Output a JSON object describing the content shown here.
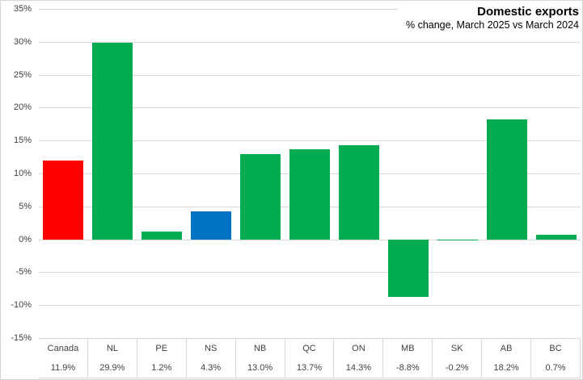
{
  "chart_data": {
    "type": "bar",
    "title": "Domestic exports",
    "subtitle": "% change, March 2025 vs March 2024",
    "categories": [
      "Canada",
      "NL",
      "PE",
      "NS",
      "NB",
      "QC",
      "ON",
      "MB",
      "SK",
      "AB",
      "BC"
    ],
    "values": [
      11.9,
      29.9,
      1.2,
      4.3,
      13.0,
      13.7,
      14.3,
      -8.8,
      -0.2,
      18.2,
      0.7
    ],
    "value_labels": [
      "11.9%",
      "29.9%",
      "1.2%",
      "4.3%",
      "13.0%",
      "13.7%",
      "14.3%",
      "-8.8%",
      "-0.2%",
      "18.2%",
      "0.7%"
    ],
    "bar_colors": [
      "#FF0000",
      "#00AC4F",
      "#00AC4F",
      "#0072C3",
      "#00AC4F",
      "#00AC4F",
      "#00AC4F",
      "#00AC4F",
      "#00AC4F",
      "#00AC4F",
      "#00AC4F"
    ],
    "colors": {
      "default_bar": "#00AC4F",
      "canada_highlight": "#FF0000",
      "ns_highlight": "#0072C3",
      "gridline": "#D9D9D9",
      "axis_text": "#404040",
      "title_text": "#000000"
    },
    "ylim": [
      -15,
      35
    ],
    "yticks": [
      35,
      30,
      25,
      20,
      15,
      10,
      5,
      0,
      -5,
      -10,
      -15
    ],
    "ytick_labels": [
      "35%",
      "30%",
      "25%",
      "20%",
      "15%",
      "10%",
      "5%",
      "0%",
      "-5%",
      "-10%",
      "-15%"
    ],
    "xlabel": "",
    "ylabel": "",
    "grid": "horizontal",
    "legend": "none",
    "data_table_shown": true
  }
}
